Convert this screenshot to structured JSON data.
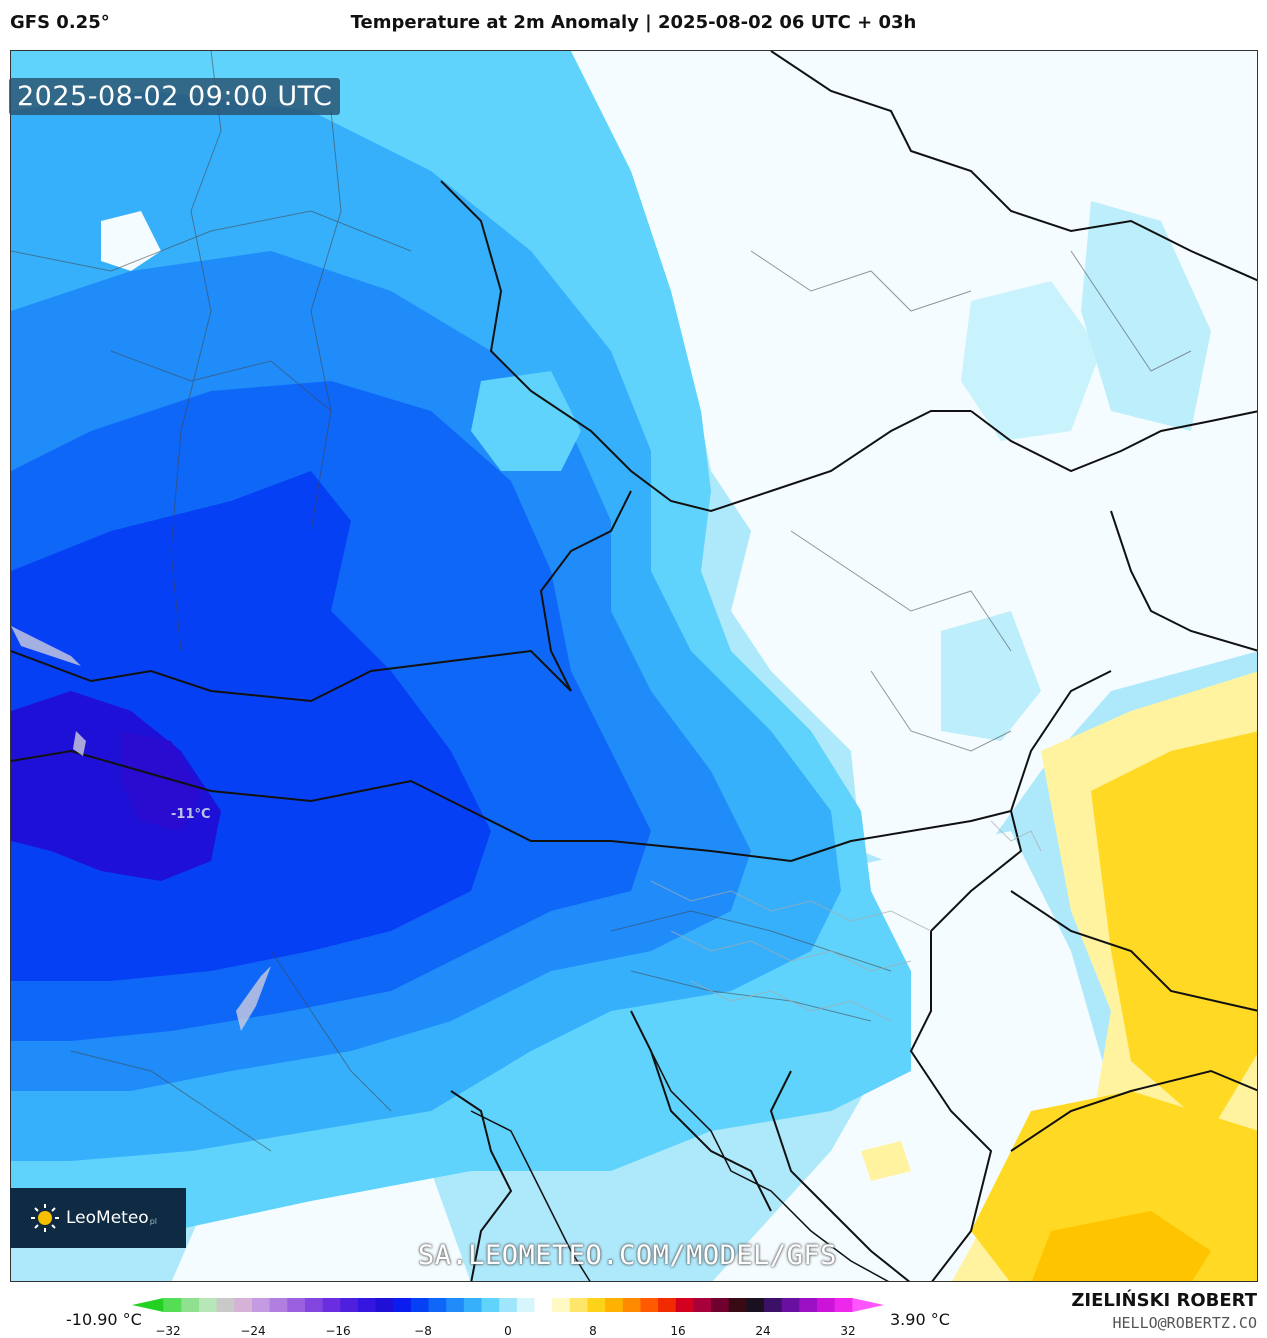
{
  "header": {
    "model": "GFS 0.25°",
    "title": "Temperature at 2m Anomaly | 2025-08-02 06 UTC + 03h"
  },
  "map": {
    "timestamp": "2025-08-02 09:00 UTC",
    "min_marker_label": "-11°C",
    "watermark": "SA.LEOMETEO.COM/MODEL/GFS",
    "logo_text": "LeoMeteo",
    "logo_suffix": "pl"
  },
  "footer": {
    "min_value": "-10.90 °C",
    "max_value": "3.90 °C",
    "author": "ZIELIŃSKI ROBERT",
    "email": "HELLO@ROBERTZ.CO"
  },
  "colorbar": {
    "ticks": [
      "−32",
      "−24",
      "−16",
      "−8",
      "0",
      "8",
      "16",
      "24",
      "32"
    ],
    "colors": [
      "#22d122",
      "#55dd55",
      "#8fe08f",
      "#b8e6b8",
      "#c9c9c9",
      "#d6b3d6",
      "#c49be0",
      "#b07fe0",
      "#9a60e0",
      "#8245e0",
      "#6a2ee0",
      "#4f1fe0",
      "#3416e0",
      "#1f10d8",
      "#0b1cf0",
      "#0640f5",
      "#0f67f8",
      "#1f8cfa",
      "#36b0fb",
      "#5fd3fc",
      "#9fe6fc",
      "#d6f5fc",
      "#ffffff",
      "#fff9c4",
      "#ffe66b",
      "#ffd21a",
      "#ffb300",
      "#ff8a00",
      "#ff5a00",
      "#f22a00",
      "#d40020",
      "#a8003a",
      "#70002e",
      "#3a0a14",
      "#1a1020",
      "#3c1066",
      "#6a10a0",
      "#9c10c4",
      "#cc14d8",
      "#ee28ea",
      "#ff55ff"
    ]
  },
  "palette": {
    "deep_blue": "#0a2cf0",
    "mid_blue": "#1f5cf5",
    "light_blue": "#36a7fb",
    "sky_blue": "#5fd3fc",
    "pale_blue": "#aee9fb",
    "white": "#f4fcff",
    "yellow_light": "#fff3a0",
    "yellow": "#ffd924"
  }
}
